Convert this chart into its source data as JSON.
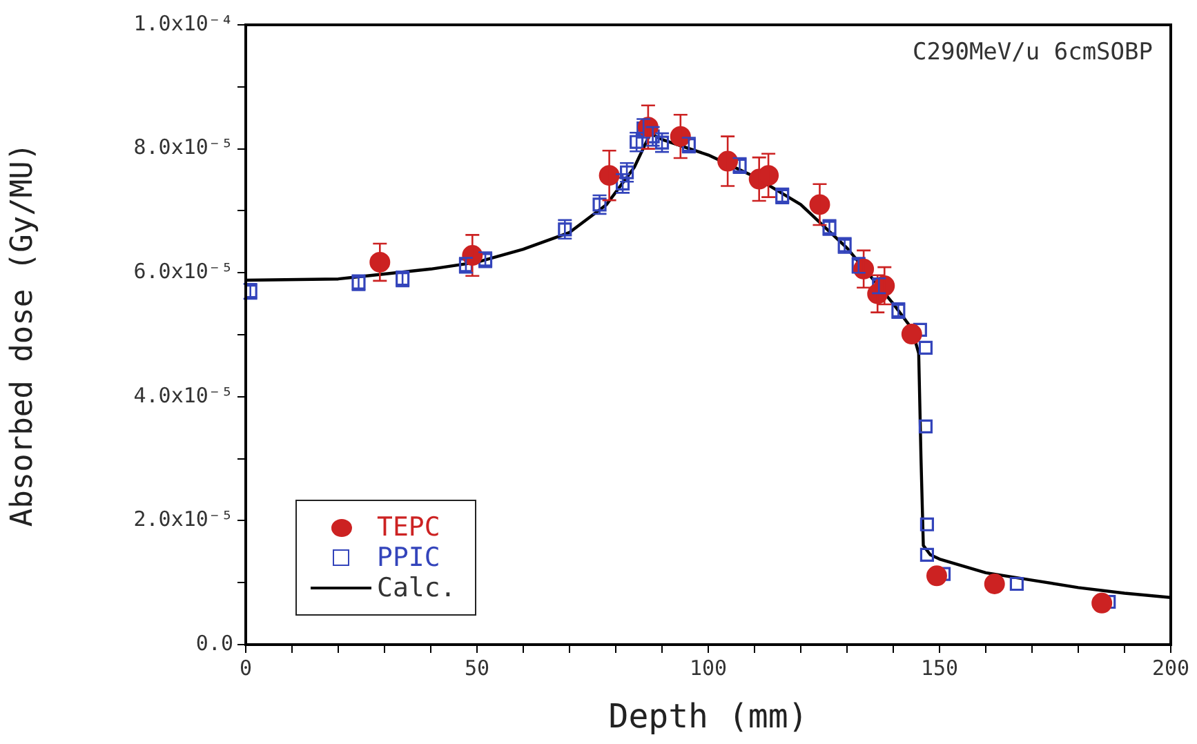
{
  "chart_data": {
    "type": "scatter",
    "xlabel": "Depth (mm)",
    "ylabel": "Absorbed dose (Gy/MU)",
    "annotations": [
      "C290MeV/u 6cmSOBP"
    ],
    "xlim": [
      0,
      200
    ],
    "xticks": [
      0,
      {
        "value": 10,
        "label": null
      },
      {
        "value": 20,
        "label": null
      },
      {
        "value": 30,
        "label": null
      },
      {
        "value": 40,
        "label": null
      },
      50,
      {
        "value": 60,
        "label": null
      },
      {
        "value": 70,
        "label": null
      },
      {
        "value": 80,
        "label": null
      },
      {
        "value": 90,
        "label": null
      },
      100,
      {
        "value": 110,
        "label": null
      },
      {
        "value": 120,
        "label": null
      },
      {
        "value": 130,
        "label": null
      },
      {
        "value": 140,
        "label": null
      },
      150,
      {
        "value": 160,
        "label": null
      },
      {
        "value": 170,
        "label": null
      },
      {
        "value": 180,
        "label": null
      },
      {
        "value": 190,
        "label": null
      },
      200
    ],
    "ylim": [
      0,
      0.0001
    ],
    "yticks": [
      {
        "value": 0,
        "label": "0.0"
      },
      {
        "value": 1e-05,
        "label": null
      },
      {
        "value": 2e-05,
        "label": "2.0x10⁻⁵"
      },
      {
        "value": 3e-05,
        "label": null
      },
      {
        "value": 4e-05,
        "label": "4.0x10⁻⁵"
      },
      {
        "value": 5e-05,
        "label": null
      },
      {
        "value": 6e-05,
        "label": "6.0x10⁻⁵"
      },
      {
        "value": 7e-05,
        "label": null
      },
      {
        "value": 8e-05,
        "label": "8.0x10⁻⁵"
      },
      {
        "value": 9e-05,
        "label": null
      },
      {
        "value": 0.0001,
        "label": "1.0x10⁻⁴"
      }
    ],
    "grid": false,
    "legend": "bottom left",
    "series": [
      {
        "name": "TEPC",
        "marker": "circle",
        "color": "#cc2222",
        "x": [
          29,
          49,
          78.6,
          87,
          94,
          104.2,
          111,
          113,
          124.1,
          133.6,
          136.6,
          138.1,
          144,
          149.4,
          161.9,
          185.1
        ],
        "values": [
          6.17e-05,
          6.28e-05,
          7.57e-05,
          8.35e-05,
          8.2e-05,
          7.8e-05,
          7.51e-05,
          7.57e-05,
          7.1e-05,
          6.06e-05,
          5.66e-05,
          5.79e-05,
          5.01e-05,
          1.11e-05,
          9.8e-06,
          6.7e-06
        ],
        "errors": [
          3e-06,
          3.3e-06,
          4e-06,
          3.5e-06,
          3.5e-06,
          4e-06,
          3.5e-06,
          3.5e-06,
          3.3e-06,
          3e-06,
          3e-06,
          3e-06,
          null,
          null,
          null,
          null
        ]
      },
      {
        "name": "PPIC",
        "marker": "square",
        "color": "#3344bb",
        "x": [
          1,
          24.4,
          33.9,
          47.6,
          51.8,
          69,
          76.5,
          81.5,
          82.4,
          84.5,
          86,
          88,
          90,
          95.8,
          106.8,
          116,
          126.2,
          129.5,
          132.5,
          136.9,
          141.1,
          145.8,
          147,
          147,
          147.3,
          147.3,
          150.9,
          166.7,
          186.6
        ],
        "values": [
          5.7e-05,
          5.84e-05,
          5.9e-05,
          6.12e-05,
          6.21e-05,
          6.7e-05,
          7.1e-05,
          7.44e-05,
          7.62e-05,
          8.11e-05,
          8.33e-05,
          8.2e-05,
          8.1e-05,
          8.06e-05,
          7.73e-05,
          7.24e-05,
          6.73e-05,
          6.44e-05,
          6.12e-05,
          5.79e-05,
          5.39e-05,
          5.08e-05,
          4.79e-05,
          3.52e-05,
          1.94e-05,
          1.45e-05,
          1.14e-05,
          9.8e-06,
          6.9e-06
        ],
        "errors": [
          1.2e-06,
          1.2e-06,
          1.2e-06,
          1.2e-06,
          1.2e-06,
          1.5e-06,
          1.5e-06,
          1.5e-06,
          1.5e-06,
          1.5e-06,
          1.5e-06,
          1.5e-06,
          1.5e-06,
          1.2e-06,
          1.2e-06,
          1.2e-06,
          1.2e-06,
          1.2e-06,
          1.2e-06,
          1.2e-06,
          1.2e-06,
          null,
          null,
          null,
          null,
          null,
          null,
          null,
          null
        ]
      },
      {
        "name": "Calc.",
        "type": "line",
        "marker": "none",
        "color": "#000000",
        "x": [
          0,
          20,
          30,
          40,
          50,
          60,
          70,
          78,
          84,
          87.5,
          90,
          100,
          110,
          120,
          130,
          140,
          144,
          145.5,
          146,
          146.5,
          148,
          150,
          160,
          170,
          180,
          190,
          200
        ],
        "values": [
          5.88e-05,
          5.9e-05,
          5.98e-05,
          6.06e-05,
          6.17e-05,
          6.38e-05,
          6.65e-05,
          7.1e-05,
          7.7e-05,
          8.25e-05,
          8.15e-05,
          7.9e-05,
          7.55e-05,
          7.1e-05,
          6.4e-05,
          5.5e-05,
          5.1e-05,
          4.7e-05,
          3e-05,
          1.6e-05,
          1.45e-05,
          1.38e-05,
          1.16e-05,
          1.04e-05,
          9.2e-06,
          8.3e-06,
          7.6e-06
        ]
      }
    ]
  }
}
